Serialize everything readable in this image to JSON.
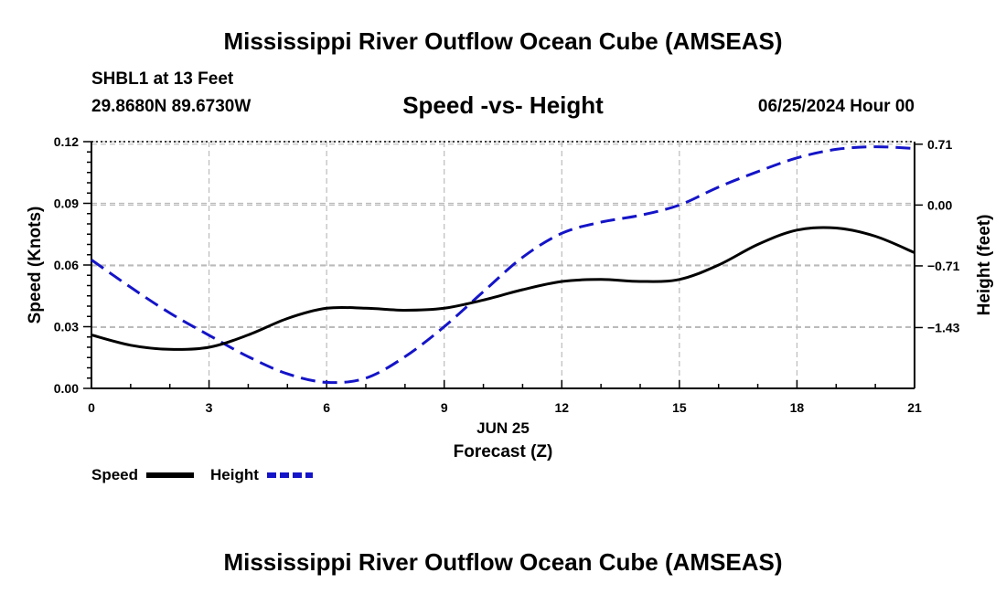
{
  "header": {
    "title": "Mississippi River Outflow Ocean Cube (AMSEAS)",
    "station": "SHBL1 at 13 Feet",
    "coords": "29.8680N  89.6730W",
    "datetime": "06/25/2024 Hour 00",
    "footer_title": "Mississippi River Outflow Ocean Cube (AMSEAS)"
  },
  "chart_data": {
    "type": "line",
    "title": "Speed -vs- Height",
    "xlabel": "Forecast (Z)",
    "xsublabel": "JUN 25",
    "ylabel": "Speed (Knots)",
    "y2label": "Height (feet)",
    "xlim": [
      0,
      21
    ],
    "ylim": [
      0,
      0.12
    ],
    "y2lim": [
      -2.14,
      0.74
    ],
    "x_ticks": [
      0,
      3,
      6,
      9,
      12,
      15,
      18,
      21
    ],
    "x_tick_labels": [
      "0",
      "3",
      "6",
      "9",
      "12",
      "15",
      "18",
      "21"
    ],
    "y_ticks": [
      0,
      0.03,
      0.06,
      0.09,
      0.12
    ],
    "y_tick_labels": [
      "0.00",
      "0.03",
      "0.06",
      "0.09",
      "0.12"
    ],
    "y2_ticks": [
      0.71,
      0,
      -0.71,
      -1.43
    ],
    "y2_tick_labels": [
      "0.71",
      "0.00",
      "−0.71",
      "−1.43"
    ],
    "grid": true,
    "legend_position": "bottom-left",
    "series": [
      {
        "name": "Speed",
        "axis": "left",
        "color": "#000000",
        "style": "solid",
        "x": [
          0,
          1,
          2,
          3,
          4,
          5,
          6,
          7,
          8,
          9,
          10,
          11,
          12,
          13,
          14,
          15,
          16,
          17,
          18,
          19,
          20,
          21
        ],
        "values": [
          0.026,
          0.021,
          0.019,
          0.02,
          0.026,
          0.034,
          0.039,
          0.039,
          0.038,
          0.039,
          0.043,
          0.048,
          0.052,
          0.053,
          0.052,
          0.053,
          0.06,
          0.07,
          0.077,
          0.078,
          0.074,
          0.066
        ]
      },
      {
        "name": "Height",
        "axis": "right",
        "color": "#1414c8",
        "style": "dashed",
        "x": [
          0,
          1,
          2,
          3,
          4,
          5,
          6,
          7,
          8,
          9,
          10,
          11,
          12,
          13,
          14,
          15,
          16,
          17,
          18,
          19,
          20,
          21
        ],
        "values": [
          -0.64,
          -0.96,
          -1.26,
          -1.52,
          -1.77,
          -1.97,
          -2.07,
          -2.02,
          -1.77,
          -1.42,
          -1.01,
          -0.61,
          -0.33,
          -0.2,
          -0.12,
          0.0,
          0.21,
          0.39,
          0.55,
          0.65,
          0.68,
          0.66
        ]
      }
    ]
  }
}
